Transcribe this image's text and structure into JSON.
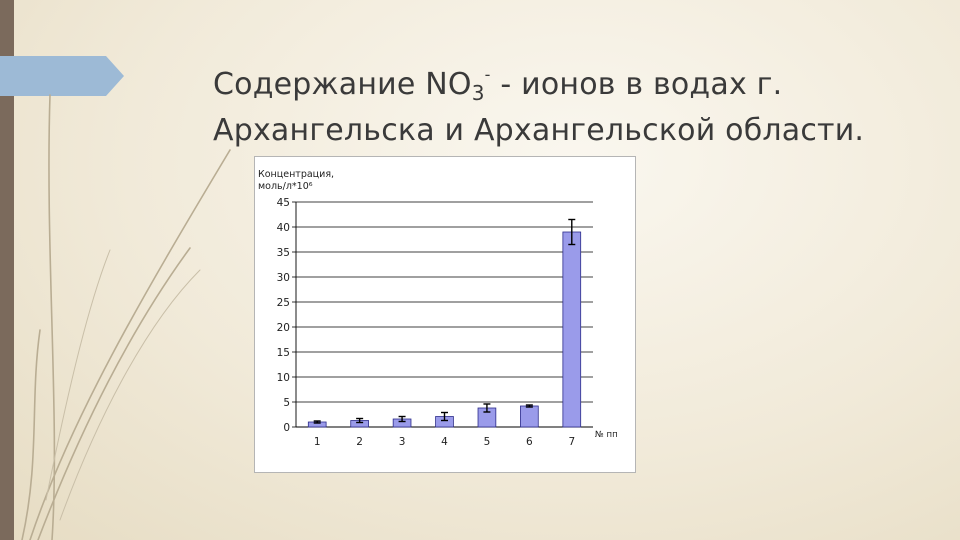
{
  "slide": {
    "title_line1_pre": "Содержание NO",
    "title_sub": "3",
    "title_sup": "-",
    "title_line1_post": " - ионов в водах г.",
    "title_line2": "Архангельска и Архангельской области."
  },
  "chart_data": {
    "type": "bar",
    "ylabel_line1": "Концентрация,",
    "ylabel_line2": "моль/л*10⁶",
    "xlabel": "№ пп",
    "categories": [
      "1",
      "2",
      "3",
      "4",
      "5",
      "6",
      "7"
    ],
    "values": [
      1.0,
      1.3,
      1.6,
      2.1,
      3.8,
      4.2,
      39.0
    ],
    "errors": [
      0.2,
      0.4,
      0.5,
      0.8,
      0.8,
      0.2,
      2.5
    ],
    "ylim": [
      0,
      45
    ],
    "yticks": [
      0,
      5,
      10,
      15,
      20,
      25,
      30,
      35,
      40,
      45
    ],
    "grid": true,
    "bar_color": "#9a9bea",
    "bar_edge": "#2c2c8a"
  }
}
